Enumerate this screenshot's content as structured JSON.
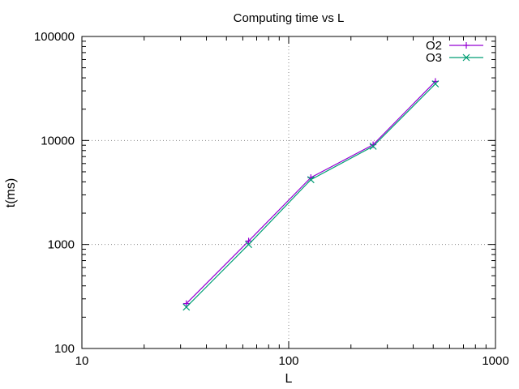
{
  "chart_data": {
    "type": "line",
    "title": "Computing time vs L",
    "xlabel": "L",
    "ylabel": "t(ms)",
    "xscale": "log",
    "yscale": "log",
    "xlim": [
      10,
      1000
    ],
    "ylim": [
      100,
      100000
    ],
    "xticks": [
      10,
      100,
      1000
    ],
    "yticks": [
      100,
      1000,
      10000,
      100000
    ],
    "xtick_labels": [
      "10",
      "100",
      "1000"
    ],
    "ytick_labels": [
      "100",
      "1000",
      "10000",
      "100000"
    ],
    "grid": true,
    "legend_position": "top-right",
    "series": [
      {
        "name": "O2",
        "color": "#9400d3",
        "marker": "plus",
        "x": [
          32,
          64,
          128,
          256,
          512
        ],
        "y": [
          270,
          1080,
          4400,
          9100,
          37000
        ]
      },
      {
        "name": "O3",
        "color": "#009e73",
        "marker": "cross",
        "x": [
          32,
          64,
          128,
          256,
          512
        ],
        "y": [
          250,
          1000,
          4200,
          8800,
          35000
        ]
      }
    ]
  }
}
